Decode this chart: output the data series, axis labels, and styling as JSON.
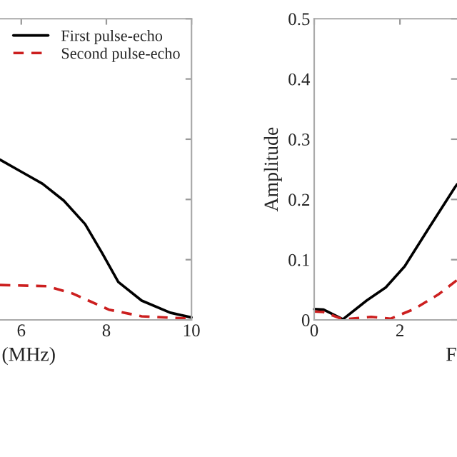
{
  "chart_data": [
    {
      "type": "line",
      "xlabel": "(MHz)",
      "x": [
        5.5,
        6,
        6.5,
        7,
        7.5,
        7.9,
        8.28,
        8.83,
        9.5,
        10
      ],
      "series": [
        {
          "name": "First pulse-echo",
          "color": "#000000",
          "line_style": "solid",
          "values": [
            0.266,
            0.246,
            0.226,
            0.198,
            0.159,
            0.111,
            0.063,
            0.032,
            0.012,
            0.004
          ]
        },
        {
          "name": "Second pulse-echo",
          "color": "#cc1f1f",
          "line_style": "dashed",
          "x": [
            5.5,
            6.6,
            7.2,
            8.06,
            8.83,
            10
          ],
          "values": [
            0.058,
            0.056,
            0.044,
            0.017,
            0.006,
            0.002
          ]
        }
      ],
      "xlim": [
        5.5,
        10
      ],
      "xticks": [
        6,
        8,
        10
      ],
      "ylim": [
        0,
        0.5
      ],
      "yticks": [
        {
          "value": 0,
          "label": null
        },
        {
          "value": 0.1,
          "label": null
        },
        {
          "value": 0.2,
          "label": null
        },
        {
          "value": 0.3,
          "label": null
        },
        {
          "value": 0.4,
          "label": null
        },
        {
          "value": 0.5,
          "label": null
        }
      ],
      "tick_labels": "x",
      "legend": "top right",
      "grid": false
    },
    {
      "type": "line",
      "xlabel": "F",
      "ylabel": "Amplitude",
      "series": [
        {
          "color": "#000000",
          "line_style": "solid",
          "x": [
            0,
            0.22,
            0.67,
            1.22,
            1.67,
            2.11,
            2.67,
            3.28,
            3.33
          ],
          "values": [
            0.018,
            0.017,
            0.001,
            0.032,
            0.054,
            0.089,
            0.152,
            0.22,
            0.225
          ]
        },
        {
          "color": "#cc1f1f",
          "line_style": "dashed",
          "x": [
            0,
            0.22,
            0.67,
            1.33,
            1.78,
            2.33,
            2.89,
            3.33
          ],
          "values": [
            0.014,
            0.013,
            0.001,
            0.005,
            0.002,
            0.018,
            0.042,
            0.066
          ]
        }
      ],
      "xlim": [
        0,
        3.33
      ],
      "xticks": [
        0,
        2
      ],
      "ylim": [
        0,
        0.5
      ],
      "yticks": [
        0,
        0.1,
        0.2,
        0.3,
        0.4,
        0.5
      ],
      "grid": false
    }
  ]
}
